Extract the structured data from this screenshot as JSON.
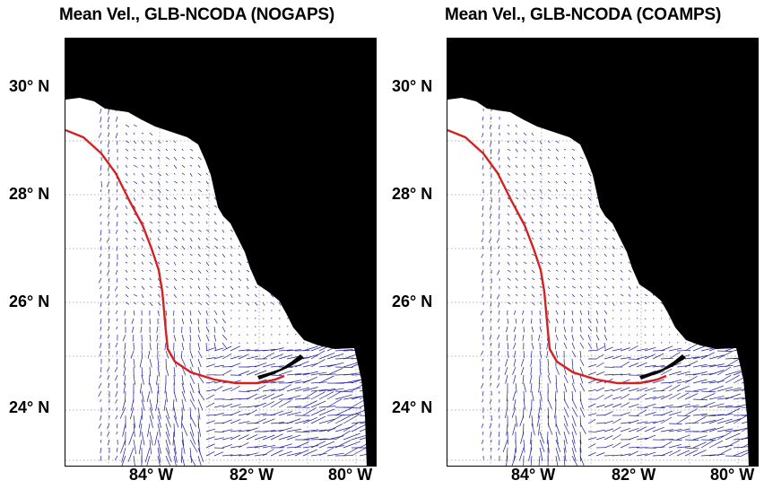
{
  "panels": [
    {
      "title": "Mean Vel., GLB-NCODA (NOGAPS)",
      "lat_labels": [
        "30° N",
        "28° N",
        "26° N",
        "24° N"
      ],
      "lon_labels": [
        "84° W",
        "82° W",
        "80° W"
      ]
    },
    {
      "title": "Mean Vel., GLB-NCODA (COAMPS)",
      "lat_labels": [
        "30° N",
        "28° N",
        "26° N",
        "24° N"
      ],
      "lon_labels": [
        "84° W",
        "82° W",
        "80° W"
      ]
    }
  ],
  "colors": {
    "land": "#000000",
    "vectors": "#1a1a9a",
    "isobath": "#d42020",
    "grid": "#9a9a9a"
  }
}
